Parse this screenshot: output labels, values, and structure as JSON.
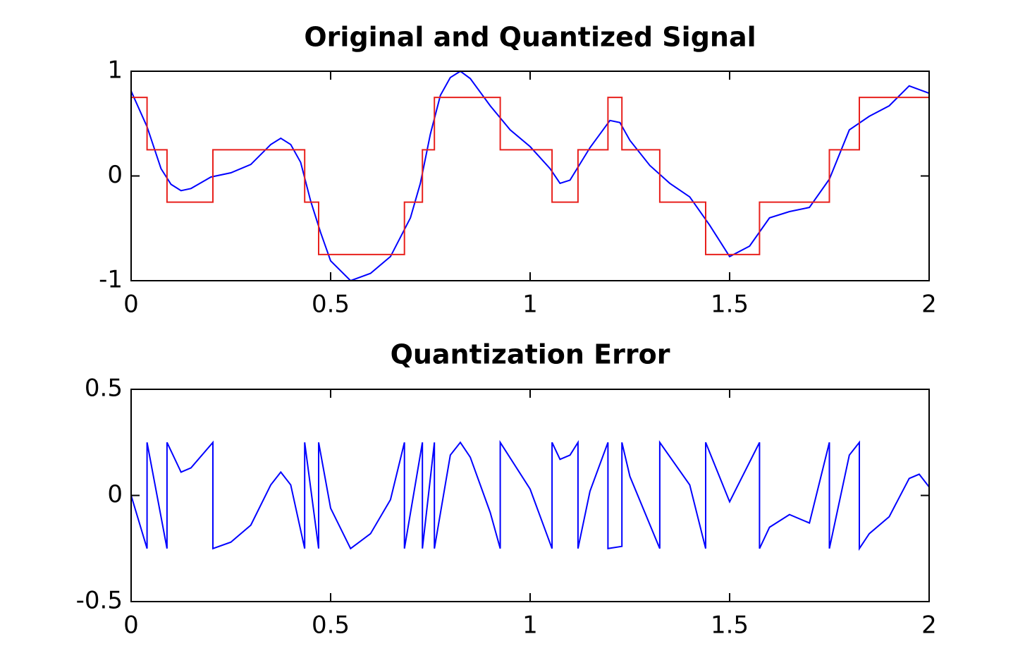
{
  "chart_data": [
    {
      "type": "line",
      "title": "Original and Quantized Signal",
      "xlim": [
        0,
        2
      ],
      "xticks": [
        0,
        0.5,
        1,
        1.5,
        2
      ],
      "ylim": [
        -1,
        1
      ],
      "yticks": [
        -1,
        0,
        1
      ],
      "series": [
        {
          "color": "#0000ff",
          "x": [
            0,
            0.04,
            0.075,
            0.1,
            0.125,
            0.15,
            0.2,
            0.25,
            0.3,
            0.35,
            0.375,
            0.4,
            0.425,
            0.45,
            0.475,
            0.5,
            0.55,
            0.6,
            0.65,
            0.7,
            0.725,
            0.75,
            0.775,
            0.8,
            0.825,
            0.85,
            0.9,
            0.95,
            1.0,
            1.05,
            1.075,
            1.1,
            1.15,
            1.2,
            1.225,
            1.25,
            1.3,
            1.35,
            1.4,
            1.45,
            1.5,
            1.55,
            1.6,
            1.65,
            1.7,
            1.75,
            1.8,
            1.85,
            1.9,
            1.95,
            2.0
          ],
          "values": [
            0.81,
            0.47,
            0.07,
            -0.08,
            -0.14,
            -0.12,
            -0.01,
            0.03,
            0.11,
            0.3,
            0.36,
            0.3,
            0.13,
            -0.24,
            -0.54,
            -0.81,
            -1.0,
            -0.93,
            -0.77,
            -0.4,
            -0.07,
            0.4,
            0.77,
            0.94,
            1.0,
            0.93,
            0.67,
            0.44,
            0.28,
            0.07,
            -0.07,
            -0.04,
            0.27,
            0.53,
            0.51,
            0.34,
            0.1,
            -0.07,
            -0.2,
            -0.47,
            -0.77,
            -0.67,
            -0.4,
            -0.34,
            -0.3,
            -0.03,
            0.44,
            0.57,
            0.67,
            0.86,
            0.79
          ]
        },
        {
          "color": "#e8201c",
          "x": [
            0,
            0.04,
            0.04,
            0.09,
            0.09,
            0.205,
            0.205,
            0.435,
            0.435,
            0.47,
            0.47,
            0.685,
            0.685,
            0.73,
            0.73,
            0.76,
            0.76,
            0.925,
            0.925,
            1.055,
            1.055,
            1.12,
            1.12,
            1.195,
            1.195,
            1.23,
            1.23,
            1.325,
            1.325,
            1.44,
            1.44,
            1.575,
            1.575,
            1.75,
            1.75,
            1.825,
            1.825,
            2
          ],
          "values": [
            0.75,
            0.75,
            0.25,
            0.25,
            -0.25,
            -0.25,
            0.25,
            0.25,
            -0.25,
            -0.25,
            -0.75,
            -0.75,
            -0.25,
            -0.25,
            0.25,
            0.25,
            0.75,
            0.75,
            0.25,
            0.25,
            -0.25,
            -0.25,
            0.25,
            0.25,
            0.75,
            0.75,
            0.25,
            0.25,
            -0.25,
            -0.25,
            -0.75,
            -0.75,
            -0.25,
            -0.25,
            0.25,
            0.25,
            0.75,
            0.75
          ]
        }
      ]
    },
    {
      "type": "line",
      "title": "Quantization Error",
      "xlim": [
        0,
        2
      ],
      "xticks": [
        0,
        0.5,
        1,
        1.5,
        2
      ],
      "ylim": [
        -0.5,
        0.5
      ],
      "yticks": [
        -0.5,
        0,
        0.5
      ],
      "series": [
        {
          "color": "#0000ff",
          "x": [
            0,
            0.04,
            0.04,
            0.09,
            0.09,
            0.125,
            0.15,
            0.205,
            0.205,
            0.25,
            0.3,
            0.35,
            0.375,
            0.4,
            0.435,
            0.435,
            0.47,
            0.47,
            0.5,
            0.55,
            0.6,
            0.65,
            0.685,
            0.685,
            0.73,
            0.73,
            0.76,
            0.76,
            0.8,
            0.825,
            0.85,
            0.9,
            0.925,
            0.925,
            1.0,
            1.055,
            1.055,
            1.075,
            1.1,
            1.12,
            1.12,
            1.15,
            1.195,
            1.195,
            1.23,
            1.23,
            1.25,
            1.325,
            1.325,
            1.4,
            1.44,
            1.44,
            1.5,
            1.575,
            1.575,
            1.6,
            1.65,
            1.7,
            1.75,
            1.75,
            1.8,
            1.825,
            1.825,
            1.85,
            1.9,
            1.95,
            1.975,
            2
          ],
          "values": [
            0,
            -0.25,
            0.25,
            -0.25,
            0.25,
            0.11,
            0.13,
            0.25,
            -0.25,
            -0.22,
            -0.14,
            0.05,
            0.11,
            0.05,
            -0.25,
            0.25,
            -0.25,
            0.25,
            -0.06,
            -0.25,
            -0.18,
            -0.02,
            0.25,
            -0.25,
            0.25,
            -0.25,
            0.25,
            -0.25,
            0.19,
            0.25,
            0.18,
            -0.08,
            -0.25,
            0.25,
            0.03,
            -0.25,
            0.25,
            0.17,
            0.19,
            0.25,
            -0.25,
            0.02,
            0.25,
            -0.25,
            -0.24,
            0.25,
            0.09,
            -0.25,
            0.25,
            0.05,
            -0.25,
            0.25,
            -0.03,
            0.25,
            -0.25,
            -0.15,
            -0.09,
            -0.13,
            0.25,
            -0.25,
            0.19,
            0.25,
            -0.25,
            -0.18,
            -0.1,
            0.08,
            0.1,
            0.04
          ]
        }
      ]
    }
  ]
}
